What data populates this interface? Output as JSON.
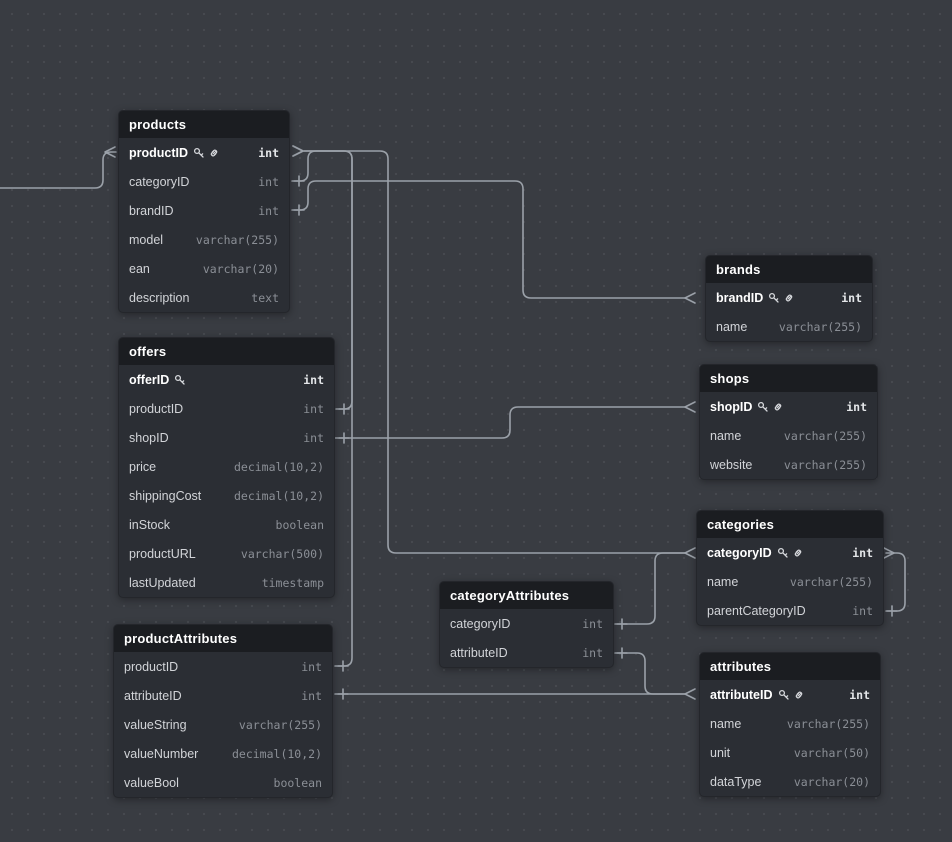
{
  "app": {
    "title": "database-er-diagram"
  },
  "canvas": {
    "background_color": "#393c42",
    "grid_dot_color": "#46494f",
    "wire_color": "#9ba1a9",
    "table_body_color": "#2b2e34",
    "table_header_color": "#1b1d21"
  },
  "tables": [
    {
      "name": "products",
      "fields": [
        {
          "name": "productID",
          "type": "int",
          "pk": true,
          "icons": [
            "key",
            "link"
          ]
        },
        {
          "name": "categoryID",
          "type": "int"
        },
        {
          "name": "brandID",
          "type": "int"
        },
        {
          "name": "model",
          "type": "varchar(255)"
        },
        {
          "name": "ean",
          "type": "varchar(20)"
        },
        {
          "name": "description",
          "type": "text"
        }
      ]
    },
    {
      "name": "offers",
      "fields": [
        {
          "name": "offerID",
          "type": "int",
          "pk": true,
          "icons": [
            "key"
          ]
        },
        {
          "name": "productID",
          "type": "int"
        },
        {
          "name": "shopID",
          "type": "int"
        },
        {
          "name": "price",
          "type": "decimal(10,2)"
        },
        {
          "name": "shippingCost",
          "type": "decimal(10,2)"
        },
        {
          "name": "inStock",
          "type": "boolean"
        },
        {
          "name": "productURL",
          "type": "varchar(500)"
        },
        {
          "name": "lastUpdated",
          "type": "timestamp"
        }
      ]
    },
    {
      "name": "productAttributes",
      "fields": [
        {
          "name": "productID",
          "type": "int"
        },
        {
          "name": "attributeID",
          "type": "int"
        },
        {
          "name": "valueString",
          "type": "varchar(255)"
        },
        {
          "name": "valueNumber",
          "type": "decimal(10,2)"
        },
        {
          "name": "valueBool",
          "type": "boolean"
        }
      ]
    },
    {
      "name": "brands",
      "fields": [
        {
          "name": "brandID",
          "type": "int",
          "pk": true,
          "icons": [
            "key",
            "link"
          ]
        },
        {
          "name": "name",
          "type": "varchar(255)"
        }
      ]
    },
    {
      "name": "shops",
      "fields": [
        {
          "name": "shopID",
          "type": "int",
          "pk": true,
          "icons": [
            "key",
            "link"
          ]
        },
        {
          "name": "name",
          "type": "varchar(255)"
        },
        {
          "name": "website",
          "type": "varchar(255)"
        }
      ]
    },
    {
      "name": "categories",
      "fields": [
        {
          "name": "categoryID",
          "type": "int",
          "pk": true,
          "icons": [
            "key",
            "link"
          ]
        },
        {
          "name": "name",
          "type": "varchar(255)"
        },
        {
          "name": "parentCategoryID",
          "type": "int"
        }
      ]
    },
    {
      "name": "categoryAttributes",
      "fields": [
        {
          "name": "categoryID",
          "type": "int"
        },
        {
          "name": "attributeID",
          "type": "int"
        }
      ]
    },
    {
      "name": "attributes",
      "fields": [
        {
          "name": "attributeID",
          "type": "int",
          "pk": true,
          "icons": [
            "key",
            "link"
          ]
        },
        {
          "name": "name",
          "type": "varchar(255)"
        },
        {
          "name": "unit",
          "type": "varchar(50)"
        },
        {
          "name": "dataType",
          "type": "varchar(20)"
        }
      ]
    }
  ],
  "relationships": [
    {
      "from": "offers.productID",
      "to": "products.productID"
    },
    {
      "from": "productAttributes.productID",
      "to": "products.productID"
    },
    {
      "from": "products.categoryID",
      "to": "categories.categoryID"
    },
    {
      "from": "products.brandID",
      "to": "brands.brandID"
    },
    {
      "from": "offers.shopID",
      "to": "shops.shopID"
    },
    {
      "from": "productAttributes.attributeID",
      "to": "attributes.attributeID"
    },
    {
      "from": "categoryAttributes.categoryID",
      "to": "categories.categoryID"
    },
    {
      "from": "categoryAttributes.attributeID",
      "to": "attributes.attributeID"
    },
    {
      "from": "categories.parentCategoryID",
      "to": "categories.categoryID"
    },
    {
      "from": "offscreen-left",
      "to": "products.productID"
    }
  ]
}
